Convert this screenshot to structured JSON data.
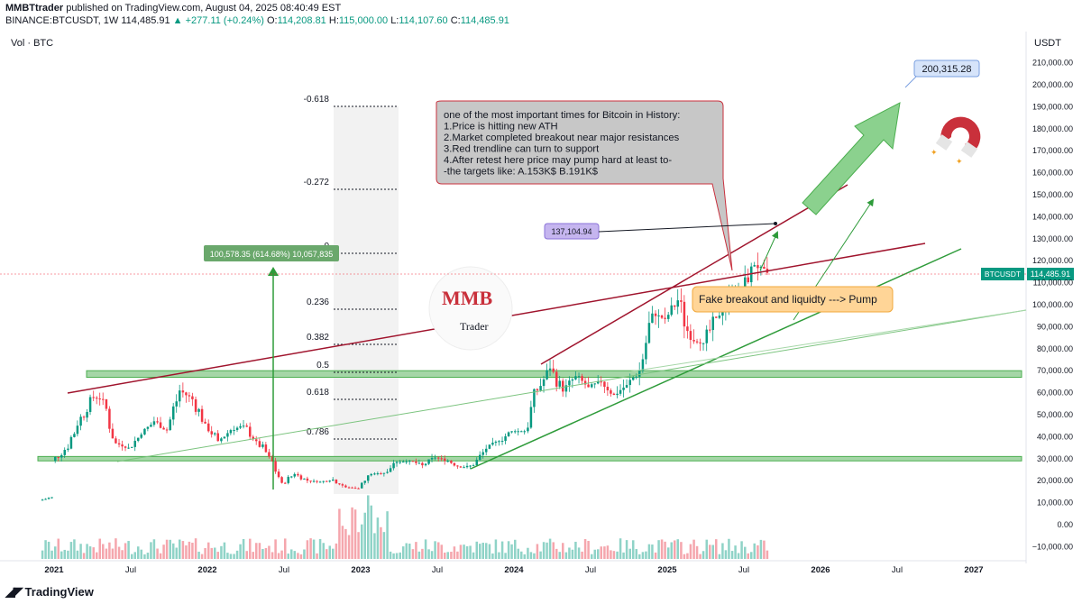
{
  "header": {
    "publisher": "MMBTtrader",
    "published_text": "published on TradingView.com, August 04, 2025 08:40:49 EST",
    "symbol": "BINANCE:BTCUSDT, 1W",
    "last": "114,485.91",
    "change": "+277.11 (+0.24%)",
    "open_label": "O:",
    "open": "114,208.81",
    "high_label": "H:",
    "high": "115,000.00",
    "low_label": "L:",
    "low": "114,107.60",
    "close_label": "C:",
    "close": "114,485.91"
  },
  "vol_label": "Vol · BTC",
  "currency_label": "USDT",
  "footer": {
    "brand": "TradingView"
  },
  "colors": {
    "up": "#089981",
    "down": "#f23645",
    "red_line": "#a0142d",
    "green_line": "#2e9b3a",
    "box_fill": "#a5d6a7"
  },
  "chart_data": {
    "type": "candlestick",
    "y_axis_ticks": [
      "210,000.00",
      "200,000.00",
      "190,000.00",
      "180,000.00",
      "170,000.00",
      "160,000.00",
      "150,000.00",
      "140,000.00",
      "130,000.00",
      "120,000.00",
      "110,000.00",
      "100,000.00",
      "90,000.00",
      "80,000.00",
      "70,000.00",
      "60,000.00",
      "50,000.00",
      "40,000.00",
      "30,000.00",
      "20,000.00",
      "10,000.00",
      "0.00",
      "−10,000.00"
    ],
    "x_axis_ticks": [
      "2021",
      "Jul",
      "2022",
      "Jul",
      "2023",
      "Jul",
      "2024",
      "Jul",
      "2025",
      "Jul",
      "2026",
      "Jul",
      "2027"
    ],
    "price_label": {
      "symbol": "BTCUSDT",
      "value": "114,485.91"
    },
    "fib_levels": [
      {
        "label": "-0.618"
      },
      {
        "label": "-0.272"
      },
      {
        "label": "0"
      },
      {
        "label": "0.236"
      },
      {
        "label": "0.382"
      },
      {
        "label": "0.5"
      },
      {
        "label": "0.618"
      },
      {
        "label": "0.786"
      }
    ],
    "measure_label": "100,578.35 (614.68%) 10,057,835",
    "target_label": "200,315.28",
    "marker_label": "137,104.94",
    "note_lines": [
      "one of the most important times for Bitcoin in History:",
      "1.Price is hitting new ATH",
      "2.Market completed breakout near major resistances",
      "3.Red trendline can turn to support",
      "4.After retest here price may pump hard at least to-",
      "-the targets like: A.153K$ B.191K$"
    ],
    "callout_label": "Fake breakout and liquidty ---> Pump",
    "logo_text": {
      "main": "MMB",
      "sub": "Trader"
    },
    "support_zones": [
      {
        "from": 67000,
        "to": 70000
      },
      {
        "from": 29000,
        "to": 31000
      }
    ],
    "series": [
      {
        "x": "2020-12",
        "open": 11000,
        "close": 12500
      },
      {
        "x": "2021-01",
        "open": 29000,
        "close": 34000
      },
      {
        "x": "2021-02",
        "open": 34000,
        "close": 45000
      },
      {
        "x": "2021-03",
        "open": 45000,
        "close": 58000
      },
      {
        "x": "2021-04",
        "open": 58000,
        "close": 57000
      },
      {
        "x": "2021-05",
        "open": 57000,
        "close": 37000
      },
      {
        "x": "2021-06",
        "open": 37000,
        "close": 35000
      },
      {
        "x": "2021-07",
        "open": 35000,
        "close": 41000
      },
      {
        "x": "2021-08",
        "open": 41000,
        "close": 47000
      },
      {
        "x": "2021-09",
        "open": 47000,
        "close": 43000
      },
      {
        "x": "2021-10",
        "open": 43000,
        "close": 61000
      },
      {
        "x": "2021-11",
        "open": 61000,
        "close": 57000
      },
      {
        "x": "2021-12",
        "open": 57000,
        "close": 46000
      },
      {
        "x": "2022-01",
        "open": 46000,
        "close": 38000
      },
      {
        "x": "2022-02",
        "open": 38000,
        "close": 43000
      },
      {
        "x": "2022-03",
        "open": 43000,
        "close": 45000
      },
      {
        "x": "2022-04",
        "open": 45000,
        "close": 38000
      },
      {
        "x": "2022-05",
        "open": 38000,
        "close": 31000
      },
      {
        "x": "2022-06",
        "open": 31000,
        "close": 19000
      },
      {
        "x": "2022-07",
        "open": 19000,
        "close": 23000
      },
      {
        "x": "2022-08",
        "open": 23000,
        "close": 20000
      },
      {
        "x": "2022-09",
        "open": 20000,
        "close": 19500
      },
      {
        "x": "2022-10",
        "open": 19500,
        "close": 20500
      },
      {
        "x": "2022-11",
        "open": 20500,
        "close": 17000
      },
      {
        "x": "2022-12",
        "open": 17000,
        "close": 16500
      },
      {
        "x": "2023-01",
        "open": 16500,
        "close": 23000
      },
      {
        "x": "2023-02",
        "open": 23000,
        "close": 23500
      },
      {
        "x": "2023-03",
        "open": 23500,
        "close": 28500
      },
      {
        "x": "2023-04",
        "open": 28500,
        "close": 29000
      },
      {
        "x": "2023-05",
        "open": 29000,
        "close": 27000
      },
      {
        "x": "2023-06",
        "open": 27000,
        "close": 30500
      },
      {
        "x": "2023-07",
        "open": 30500,
        "close": 29000
      },
      {
        "x": "2023-08",
        "open": 29000,
        "close": 26000
      },
      {
        "x": "2023-09",
        "open": 26000,
        "close": 27000
      },
      {
        "x": "2023-10",
        "open": 27000,
        "close": 34500
      },
      {
        "x": "2023-11",
        "open": 34500,
        "close": 38000
      },
      {
        "x": "2023-12",
        "open": 38000,
        "close": 42500
      },
      {
        "x": "2024-01",
        "open": 42500,
        "close": 42500
      },
      {
        "x": "2024-02",
        "open": 42500,
        "close": 61000
      },
      {
        "x": "2024-03",
        "open": 61000,
        "close": 71000
      },
      {
        "x": "2024-04",
        "open": 71000,
        "close": 60500
      },
      {
        "x": "2024-05",
        "open": 60500,
        "close": 67500
      },
      {
        "x": "2024-06",
        "open": 67500,
        "close": 62500
      },
      {
        "x": "2024-07",
        "open": 62500,
        "close": 65000
      },
      {
        "x": "2024-08",
        "open": 65000,
        "close": 59000
      },
      {
        "x": "2024-09",
        "open": 59000,
        "close": 63500
      },
      {
        "x": "2024-10",
        "open": 63500,
        "close": 70000
      },
      {
        "x": "2024-11",
        "open": 70000,
        "close": 96000
      },
      {
        "x": "2024-12",
        "open": 96000,
        "close": 93500
      },
      {
        "x": "2025-01",
        "open": 93500,
        "close": 102000
      },
      {
        "x": "2025-02",
        "open": 102000,
        "close": 84000
      },
      {
        "x": "2025-03",
        "open": 84000,
        "close": 82500
      },
      {
        "x": "2025-04",
        "open": 82500,
        "close": 94000
      },
      {
        "x": "2025-05",
        "open": 94000,
        "close": 104500
      },
      {
        "x": "2025-06",
        "open": 104500,
        "close": 107000
      },
      {
        "x": "2025-07",
        "open": 107000,
        "close": 118000
      },
      {
        "x": "2025-08",
        "open": 118000,
        "close": 114486
      }
    ]
  }
}
